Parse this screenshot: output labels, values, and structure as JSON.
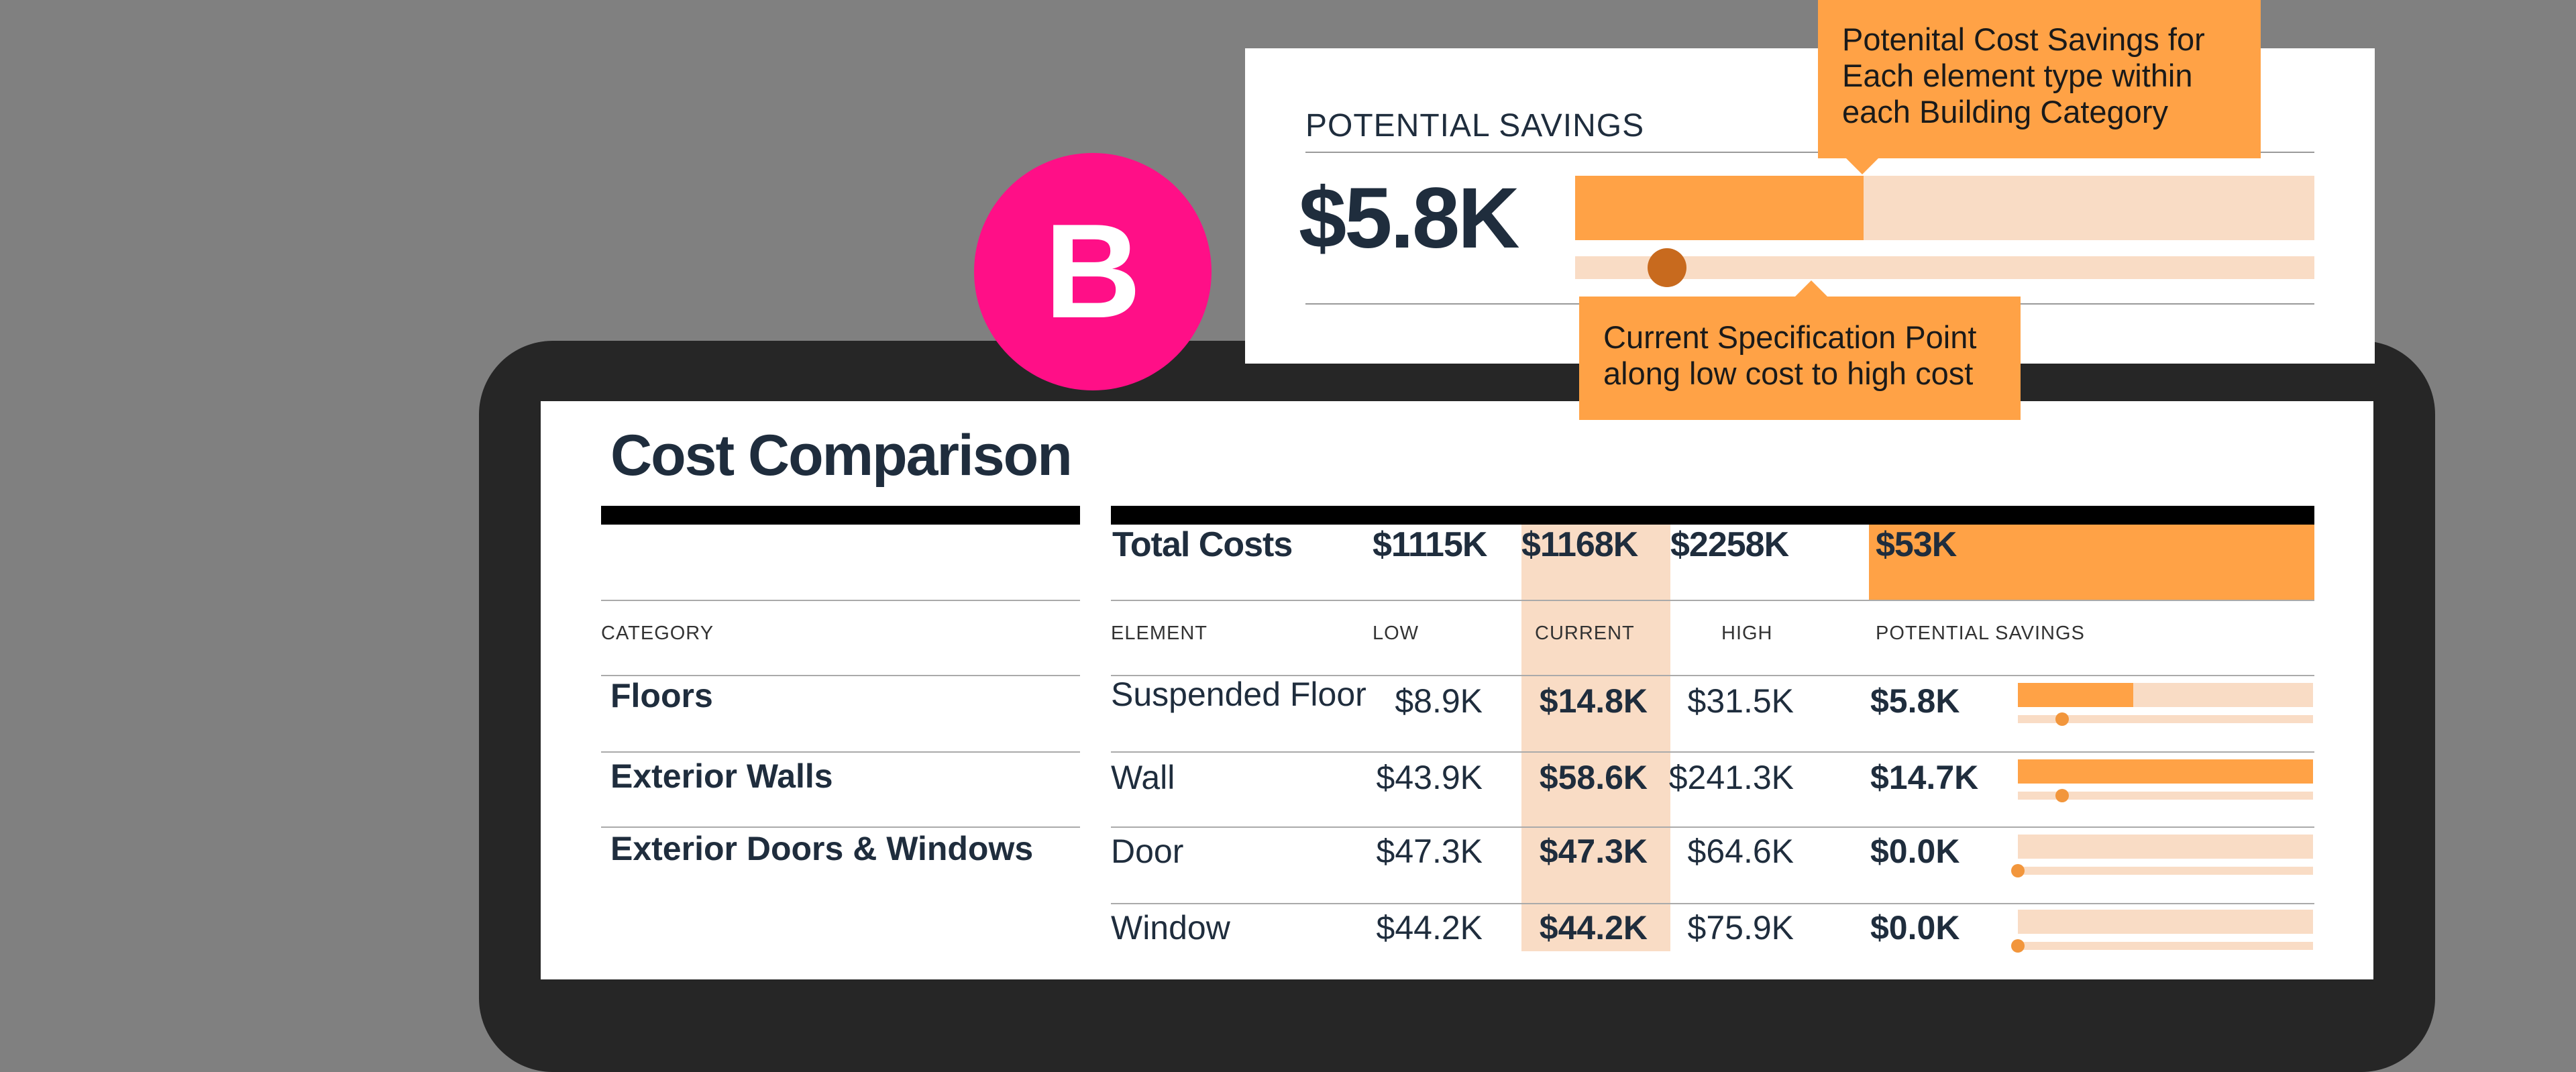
{
  "badge": {
    "letter": "B",
    "color": "#ff0f87"
  },
  "colors": {
    "accent_orange": "#ffa246",
    "light_peach": "#f9dcc5",
    "dark_navy": "#1f2d3d",
    "spec_dot": "#c86a1e"
  },
  "savings_card": {
    "label": "POTENTIAL SAVINGS",
    "value": "$5.8K",
    "savings_fraction": 0.39,
    "spec_position": 0.12
  },
  "callouts": {
    "savings": [
      "Potenital Cost Savings for",
      "Each element type within",
      "each Building Category"
    ],
    "spec": [
      "Current Specification Point",
      "along low cost to high cost"
    ]
  },
  "table": {
    "title": "Cost Comparison",
    "totals": {
      "label": "Total Costs",
      "low": "$1115K",
      "current": "$1168K",
      "high": "$2258K",
      "savings": "$53K"
    },
    "headers": {
      "category": "CATEGORY",
      "element": "ELEMENT",
      "low": "LOW",
      "current": "CURRENT",
      "high": "HIGH",
      "savings": "POTENTIAL SAVINGS"
    },
    "categories": [
      "Floors",
      "Exterior Walls",
      "Exterior Doors & Windows"
    ],
    "rows": [
      {
        "element": "Suspended Floor",
        "low": "$8.9K",
        "current": "$14.8K",
        "high": "$31.5K",
        "savings": "$5.8K",
        "savings_fraction": 0.39,
        "spec_position": 0.12
      },
      {
        "element": "Wall",
        "low": "$43.9K",
        "current": "$58.6K",
        "high": "$241.3K",
        "savings": "$14.7K",
        "savings_fraction": 1.0,
        "spec_position": 0.12
      },
      {
        "element": "Door",
        "low": "$47.3K",
        "current": "$47.3K",
        "high": "$64.6K",
        "savings": "$0.0K",
        "savings_fraction": 0.0,
        "spec_position": 0.0
      },
      {
        "element": "Window",
        "low": "$44.2K",
        "current": "$44.2K",
        "high": "$75.9K",
        "savings": "$0.0K",
        "savings_fraction": 0.0,
        "spec_position": 0.0
      }
    ]
  }
}
